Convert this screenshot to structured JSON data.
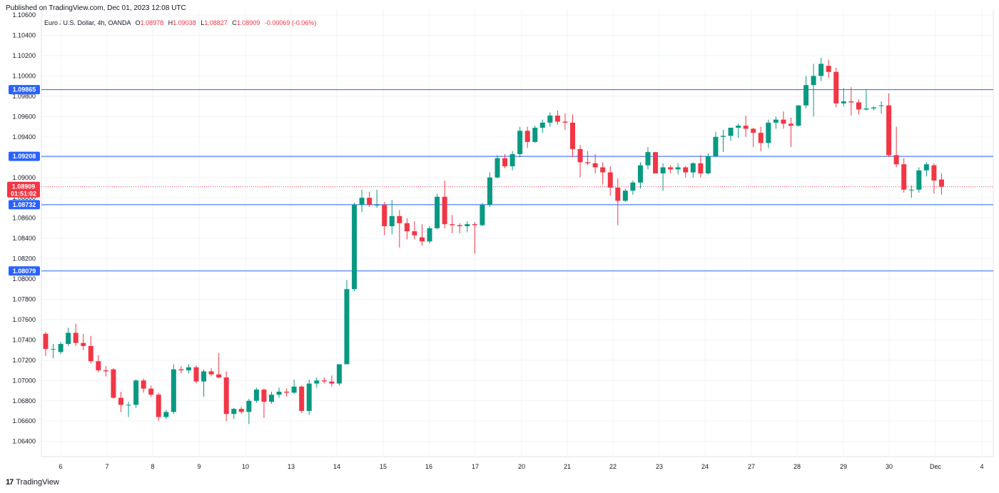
{
  "header": {
    "published": "Published on TradingView.com, Dec 01, 2023 12:08 UTC"
  },
  "legend": {
    "symbol": "Euro / U.S. Dollar, 4h, OANDA",
    "open_label": "O",
    "open": "1.08978",
    "high_label": "H",
    "high": "1.09038",
    "low_label": "L",
    "low": "1.08827",
    "close_label": "C",
    "close": "1.08909",
    "change": "-0.00069 (-0.06%)"
  },
  "footer": {
    "brand": "TradingView",
    "logo_icon": "tradingview-logo-icon"
  },
  "colors": {
    "up": "#089981",
    "down": "#f23645",
    "level_line": "#2962ff",
    "level_label": "#2962ff",
    "current_price": "#f23645",
    "grid": "#f0f3fa"
  },
  "chart_data": {
    "type": "candlestick",
    "title": "",
    "xlabel": "",
    "ylabel": "",
    "ylim": [
      1.0625,
      1.1065
    ],
    "y_ticks": [
      "1.06400",
      "1.06600",
      "1.06800",
      "1.07000",
      "1.07200",
      "1.07400",
      "1.07600",
      "1.07800",
      "1.08000",
      "1.08200",
      "1.08400",
      "1.08600",
      "1.08800",
      "1.09000",
      "1.09200",
      "1.09400",
      "1.09600",
      "1.09800",
      "1.10000",
      "1.10200",
      "1.10400",
      "1.10600"
    ],
    "x_labels": [
      "6",
      "7",
      "8",
      "9",
      "10",
      "13",
      "14",
      "15",
      "16",
      "17",
      "20",
      "21",
      "22",
      "23",
      "24",
      "27",
      "28",
      "29",
      "30",
      "Dec",
      "4"
    ],
    "grid": true,
    "horizontal_levels": [
      {
        "price": 1.09865,
        "label": "1.09865"
      },
      {
        "price": 1.09208,
        "label": "1.09208"
      },
      {
        "price": 1.08732,
        "label": "1.08732"
      },
      {
        "price": 1.08079,
        "label": "1.08079"
      }
    ],
    "current_price": {
      "price": 1.08909,
      "label": "1.08909",
      "countdown": "01:51:02"
    },
    "candles": [
      [
        1.0746,
        1.0748,
        1.0724,
        1.0731
      ],
      [
        1.0731,
        1.0736,
        1.0722,
        1.0731
      ],
      [
        1.0728,
        1.0738,
        1.0726,
        1.0736
      ],
      [
        1.0736,
        1.0752,
        1.0734,
        1.0747
      ],
      [
        1.0747,
        1.0756,
        1.0734,
        1.0737
      ],
      [
        1.0737,
        1.0746,
        1.073,
        1.0734
      ],
      [
        1.0734,
        1.0744,
        1.0717,
        1.0719
      ],
      [
        1.0719,
        1.0725,
        1.0708,
        1.071
      ],
      [
        1.071,
        1.0714,
        1.0704,
        1.0709
      ],
      [
        1.0711,
        1.0712,
        1.0682,
        1.0683
      ],
      [
        1.0683,
        1.0689,
        1.0669,
        1.0676
      ],
      [
        1.0676,
        1.0679,
        1.0664,
        1.0676
      ],
      [
        1.0676,
        1.0701,
        1.0673,
        1.07
      ],
      [
        1.07,
        1.0702,
        1.0688,
        1.0692
      ],
      [
        1.0692,
        1.0695,
        1.0684,
        1.0686
      ],
      [
        1.0686,
        1.0688,
        1.066,
        1.0664
      ],
      [
        1.0664,
        1.0671,
        1.0662,
        1.0669
      ],
      [
        1.0669,
        1.0716,
        1.0667,
        1.0711
      ],
      [
        1.0711,
        1.0714,
        1.0707,
        1.071
      ],
      [
        1.071,
        1.0716,
        1.0707,
        1.0713
      ],
      [
        1.0713,
        1.0715,
        1.0697,
        1.0699
      ],
      [
        1.0699,
        1.0711,
        1.0684,
        1.0709
      ],
      [
        1.0709,
        1.0712,
        1.0704,
        1.0706
      ],
      [
        1.0706,
        1.0727,
        1.0702,
        1.0703
      ],
      [
        1.0703,
        1.0709,
        1.066,
        1.0667
      ],
      [
        1.0667,
        1.0673,
        1.0662,
        1.0672
      ],
      [
        1.0672,
        1.0674,
        1.0667,
        1.0669
      ],
      [
        1.0669,
        1.0682,
        1.0657,
        1.068
      ],
      [
        1.068,
        1.0693,
        1.0678,
        1.0691
      ],
      [
        1.0691,
        1.0692,
        1.0663,
        1.0679
      ],
      [
        1.0679,
        1.0689,
        1.0677,
        1.0686
      ],
      [
        1.0686,
        1.0693,
        1.0683,
        1.0689
      ],
      [
        1.0689,
        1.0692,
        1.0684,
        1.0688
      ],
      [
        1.0688,
        1.0701,
        1.0687,
        1.0694
      ],
      [
        1.0694,
        1.0695,
        1.0668,
        1.067
      ],
      [
        1.067,
        1.0701,
        1.0666,
        1.0697
      ],
      [
        1.0697,
        1.0703,
        1.0693,
        1.07
      ],
      [
        1.07,
        1.0703,
        1.0697,
        1.0699
      ],
      [
        1.0699,
        1.0705,
        1.0694,
        1.0697
      ],
      [
        1.0697,
        1.0712,
        1.0695,
        1.0716
      ],
      [
        1.0716,
        1.0799,
        1.0716,
        1.079
      ],
      [
        1.079,
        1.0875,
        1.0788,
        1.0873
      ],
      [
        1.0873,
        1.0888,
        1.0866,
        1.088
      ],
      [
        1.088,
        1.0886,
        1.0871,
        1.0873
      ],
      [
        1.0873,
        1.0888,
        1.087,
        1.0873
      ],
      [
        1.0873,
        1.0876,
        1.0843,
        1.0852
      ],
      [
        1.0852,
        1.0878,
        1.0844,
        1.0862
      ],
      [
        1.0862,
        1.0868,
        1.0831,
        1.0855
      ],
      [
        1.0855,
        1.086,
        1.0839,
        1.0847
      ],
      [
        1.0847,
        1.0857,
        1.0839,
        1.0843
      ],
      [
        1.0841,
        1.0854,
        1.0833,
        1.0837
      ],
      [
        1.0837,
        1.0852,
        1.0835,
        1.085
      ],
      [
        1.085,
        1.0884,
        1.0849,
        1.0881
      ],
      [
        1.0881,
        1.0897,
        1.085,
        1.0854
      ],
      [
        1.0854,
        1.0863,
        1.0845,
        1.0853
      ],
      [
        1.0853,
        1.0855,
        1.0845,
        1.0852
      ],
      [
        1.0852,
        1.0857,
        1.0846,
        1.0854
      ],
      [
        1.0854,
        1.0856,
        1.0825,
        1.0853
      ],
      [
        1.0853,
        1.0875,
        1.0852,
        1.0873
      ],
      [
        1.0873,
        1.0905,
        1.0871,
        1.09
      ],
      [
        1.09,
        1.0922,
        1.0899,
        1.0919
      ],
      [
        1.0919,
        1.0923,
        1.0909,
        1.0911
      ],
      [
        1.0911,
        1.0926,
        1.0907,
        1.0923
      ],
      [
        1.0923,
        1.095,
        1.092,
        1.0946
      ],
      [
        1.0946,
        1.095,
        1.0929,
        1.0935
      ],
      [
        1.0935,
        1.0951,
        1.0934,
        1.0949
      ],
      [
        1.0949,
        1.0957,
        1.0944,
        1.0954
      ],
      [
        1.0954,
        1.0964,
        1.095,
        1.0961
      ],
      [
        1.0961,
        1.0966,
        1.0952,
        1.0955
      ],
      [
        1.0955,
        1.0963,
        1.0947,
        1.0954
      ],
      [
        1.0954,
        1.0962,
        1.092,
        1.0928
      ],
      [
        1.0928,
        1.0932,
        1.09,
        1.0915
      ],
      [
        1.0915,
        1.0926,
        1.0912,
        1.0914
      ],
      [
        1.0914,
        1.0923,
        1.0904,
        1.091
      ],
      [
        1.091,
        1.0915,
        1.0893,
        1.0905
      ],
      [
        1.0905,
        1.0911,
        1.0882,
        1.089
      ],
      [
        1.089,
        1.0899,
        1.0853,
        1.0877
      ],
      [
        1.0877,
        1.0889,
        1.0876,
        1.0887
      ],
      [
        1.0887,
        1.0897,
        1.0883,
        1.0895
      ],
      [
        1.0895,
        1.0915,
        1.0889,
        1.0912
      ],
      [
        1.0912,
        1.093,
        1.0908,
        1.0925
      ],
      [
        1.0925,
        1.0925,
        1.0904,
        1.0904
      ],
      [
        1.0904,
        1.0914,
        1.0887,
        1.091
      ],
      [
        1.091,
        1.0912,
        1.0904,
        1.0908
      ],
      [
        1.0908,
        1.0914,
        1.0903,
        1.091
      ],
      [
        1.091,
        1.0911,
        1.09,
        1.0905
      ],
      [
        1.0905,
        1.0915,
        1.09,
        1.0914
      ],
      [
        1.0914,
        1.0922,
        1.09,
        1.0904
      ],
      [
        1.0904,
        1.0924,
        1.0903,
        1.0921
      ],
      [
        1.0921,
        1.0945,
        1.092,
        1.094
      ],
      [
        1.094,
        1.0947,
        1.0925,
        1.0941
      ],
      [
        1.0941,
        1.0947,
        1.0936,
        1.0949
      ],
      [
        1.0949,
        1.0953,
        1.0939,
        1.0951
      ],
      [
        1.0951,
        1.0961,
        1.094,
        1.0948
      ],
      [
        1.0948,
        1.0949,
        1.093,
        1.0944
      ],
      [
        1.0944,
        1.095,
        1.0926,
        1.0934
      ],
      [
        1.0934,
        1.0957,
        1.0929,
        1.0954
      ],
      [
        1.0954,
        1.096,
        1.0948,
        1.0957
      ],
      [
        1.0957,
        1.0965,
        1.0948,
        1.0953
      ],
      [
        1.0953,
        1.0959,
        1.093,
        1.0951
      ],
      [
        1.0951,
        1.0971,
        1.095,
        1.0971
      ],
      [
        1.0971,
        1.1,
        1.0968,
        1.0991
      ],
      [
        1.0991,
        1.1012,
        1.096,
        1.1
      ],
      [
        1.1,
        1.1018,
        1.0995,
        1.1012
      ],
      [
        1.101,
        1.1016,
        1.0998,
        1.1004
      ],
      [
        1.1004,
        1.1008,
        1.0969,
        1.0973
      ],
      [
        1.0973,
        1.0988,
        1.097,
        1.0975
      ],
      [
        1.0975,
        1.0989,
        1.0961,
        1.0974
      ],
      [
        1.0974,
        1.0977,
        1.0962,
        1.0967
      ],
      [
        1.0967,
        1.0987,
        1.0966,
        1.0968
      ],
      [
        1.0968,
        1.097,
        1.0966,
        1.0969
      ],
      [
        1.0971,
        1.0975,
        1.0963,
        1.0971
      ],
      [
        1.0971,
        1.0983,
        1.092,
        1.0922
      ],
      [
        1.0922,
        1.095,
        1.091,
        1.0913
      ],
      [
        1.0913,
        1.0919,
        1.0885,
        1.0888
      ],
      [
        1.0888,
        1.0892,
        1.088,
        1.0888
      ],
      [
        1.0888,
        1.091,
        1.0885,
        1.0907
      ],
      [
        1.0907,
        1.0915,
        1.0901,
        1.0913
      ],
      [
        1.0912,
        1.0914,
        1.0884,
        1.0897
      ],
      [
        1.0898,
        1.0904,
        1.0883,
        1.0891
      ]
    ]
  }
}
